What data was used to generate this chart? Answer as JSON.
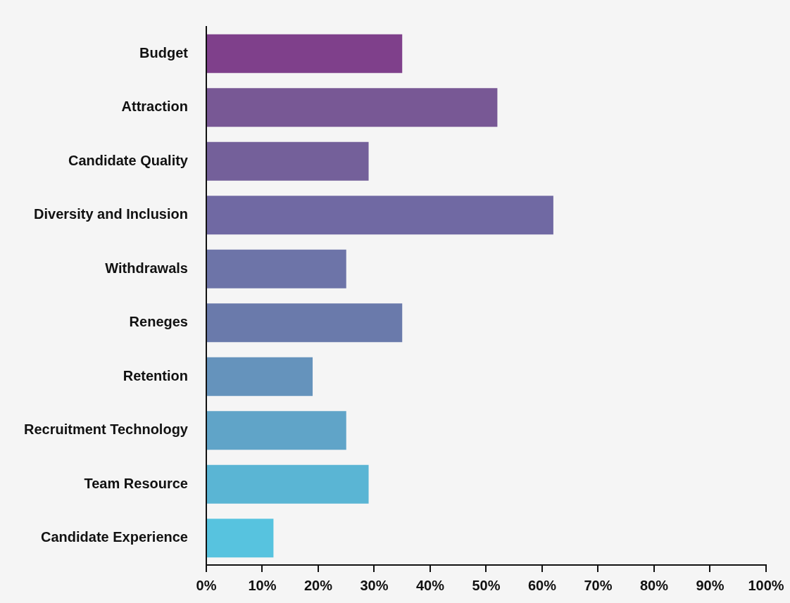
{
  "chart_data": {
    "type": "bar",
    "orientation": "horizontal",
    "categories": [
      "Budget",
      "Attraction",
      "Candidate Quality",
      "Diversity and Inclusion",
      "Withdrawals",
      "Reneges",
      "Retention",
      "Recruitment Technology",
      "Team Resource",
      "Candidate Experience"
    ],
    "values": [
      35,
      52,
      29,
      62,
      25,
      35,
      19,
      25,
      29,
      12
    ],
    "colors": [
      "#7f408b",
      "#785895",
      "#74609a",
      "#7069a3",
      "#6d74a8",
      "#6a7aab",
      "#6593bc",
      "#60a4c8",
      "#5ab5d4",
      "#57c3df"
    ],
    "xlim": [
      0,
      100
    ],
    "xticks": [
      {
        "value": 0,
        "label": "0%"
      },
      {
        "value": 10,
        "label": "10%"
      },
      {
        "value": 20,
        "label": "20%"
      },
      {
        "value": 30,
        "label": "30%"
      },
      {
        "value": 40,
        "label": "40%"
      },
      {
        "value": 50,
        "label": "50%"
      },
      {
        "value": 60,
        "label": "60%"
      },
      {
        "value": 70,
        "label": "70%"
      },
      {
        "value": 80,
        "label": "80%"
      },
      {
        "value": 90,
        "label": "90%"
      },
      {
        "value": 100,
        "label": "100%"
      }
    ],
    "grid": false
  }
}
